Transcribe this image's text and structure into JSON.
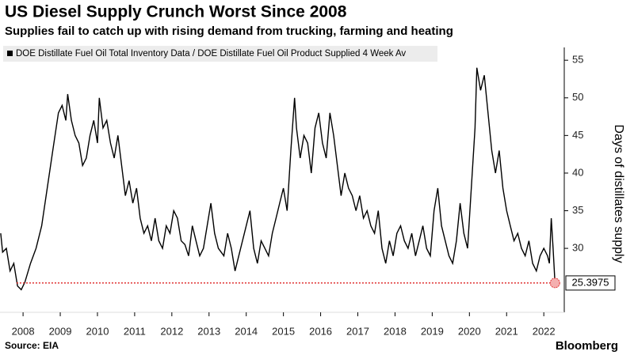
{
  "chart_data": {
    "type": "line",
    "title": "US Diesel Supply Crunch Worst Since 2008",
    "subtitle": "Supplies fail to catch up with rising demand from trucking, farming and heating",
    "y_label": "Days of distillates supply",
    "source": "Source: EIA",
    "brand": "Bloomberg",
    "xlim": [
      2007.38,
      2022.55
    ],
    "ylim": [
      21.5,
      56.7
    ],
    "xticks": [
      2008,
      2009,
      2010,
      2011,
      2012,
      2013,
      2014,
      2015,
      2016,
      2017,
      2018,
      2019,
      2020,
      2021,
      2022
    ],
    "yticks": [
      30,
      35,
      40,
      45,
      50,
      55
    ],
    "x": [
      2007.4,
      2007.45,
      2007.55,
      2007.65,
      2007.75,
      2007.85,
      2007.95,
      2008.05,
      2008.2,
      2008.35,
      2008.5,
      2008.65,
      2008.8,
      2008.95,
      2009.05,
      2009.15,
      2009.2,
      2009.3,
      2009.4,
      2009.5,
      2009.6,
      2009.7,
      2009.8,
      2009.9,
      2010.0,
      2010.05,
      2010.15,
      2010.25,
      2010.35,
      2010.45,
      2010.55,
      2010.65,
      2010.75,
      2010.85,
      2010.95,
      2011.05,
      2011.15,
      2011.25,
      2011.35,
      2011.45,
      2011.55,
      2011.65,
      2011.75,
      2011.85,
      2011.95,
      2012.05,
      2012.15,
      2012.25,
      2012.35,
      2012.45,
      2012.55,
      2012.65,
      2012.75,
      2012.85,
      2012.95,
      2013.05,
      2013.15,
      2013.25,
      2013.4,
      2013.5,
      2013.6,
      2013.7,
      2013.8,
      2013.9,
      2014.0,
      2014.1,
      2014.2,
      2014.3,
      2014.4,
      2014.5,
      2014.6,
      2014.7,
      2014.8,
      2014.9,
      2015.0,
      2015.1,
      2015.2,
      2015.3,
      2015.35,
      2015.45,
      2015.55,
      2015.65,
      2015.75,
      2015.85,
      2015.95,
      2016.05,
      2016.15,
      2016.25,
      2016.35,
      2016.45,
      2016.55,
      2016.65,
      2016.75,
      2016.85,
      2016.95,
      2017.05,
      2017.15,
      2017.25,
      2017.35,
      2017.45,
      2017.55,
      2017.65,
      2017.75,
      2017.85,
      2017.95,
      2018.05,
      2018.15,
      2018.25,
      2018.35,
      2018.45,
      2018.55,
      2018.65,
      2018.75,
      2018.85,
      2018.95,
      2019.05,
      2019.15,
      2019.25,
      2019.35,
      2019.45,
      2019.55,
      2019.65,
      2019.75,
      2019.85,
      2019.95,
      2020.05,
      2020.15,
      2020.2,
      2020.3,
      2020.4,
      2020.5,
      2020.6,
      2020.7,
      2020.8,
      2020.9,
      2021.0,
      2021.1,
      2021.2,
      2021.3,
      2021.4,
      2021.5,
      2021.6,
      2021.7,
      2021.8,
      2021.9,
      2022.0,
      2022.1,
      2022.15,
      2022.2,
      2022.25,
      2022.3
    ],
    "series": [
      {
        "name": "DOE Distillate Fuel Oil Total Inventory Data / DOE Distillate Fuel Oil Product Supplied 4 Week Av",
        "color": "#000000",
        "values": [
          32,
          29.5,
          30,
          27,
          28,
          25,
          24.5,
          25.5,
          28,
          30,
          33,
          38,
          43,
          48,
          49,
          47,
          50.5,
          47,
          45,
          44,
          41,
          42,
          45,
          47,
          44,
          50,
          46,
          47,
          44,
          42,
          45,
          41,
          37,
          39,
          36,
          38,
          34,
          32,
          33,
          31,
          34,
          31,
          30,
          33,
          32,
          35,
          34,
          31,
          30.5,
          29,
          33,
          31,
          29,
          30,
          33,
          36,
          32,
          30,
          29,
          32,
          30,
          27,
          29,
          31,
          33,
          35,
          30,
          28,
          31,
          30,
          29,
          32,
          34,
          36,
          38,
          35,
          43,
          50,
          46,
          42,
          45,
          44,
          40,
          46,
          48,
          44,
          42,
          48,
          45,
          41,
          37,
          40,
          38,
          37,
          35,
          37,
          34,
          35,
          33,
          32,
          35,
          30,
          28,
          31,
          29,
          32,
          33,
          31,
          30,
          32,
          29,
          31,
          33,
          30,
          29,
          35,
          38,
          33,
          31,
          29,
          28,
          31,
          36,
          32,
          30,
          38,
          46,
          54,
          51,
          53,
          48,
          43,
          40,
          43,
          38,
          35,
          33,
          31,
          32,
          30,
          29,
          31,
          28,
          27,
          29,
          30,
          29,
          28,
          34,
          30,
          25.3975
        ]
      }
    ]
  }
}
